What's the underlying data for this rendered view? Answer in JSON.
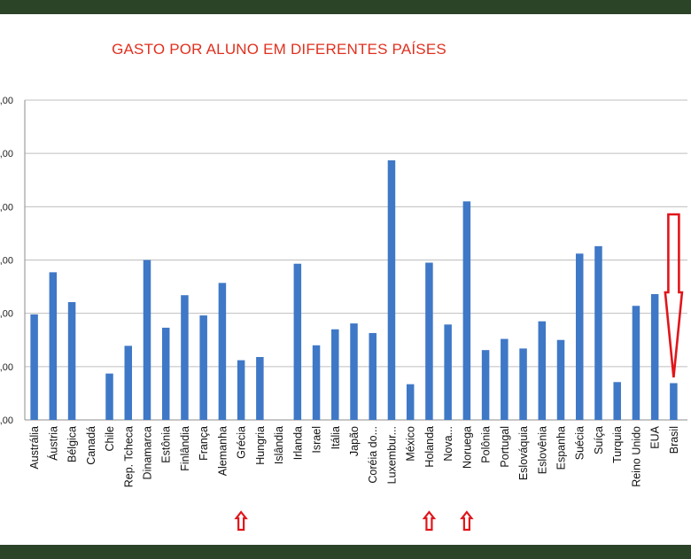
{
  "colors": {
    "frame": "#2b4326",
    "title": "#e0301e",
    "bar": "#3f78c6",
    "grid": "#bfbfbf",
    "arrow": "#e0161b"
  },
  "chart_data": {
    "type": "bar",
    "title": "GASTO POR ALUNO EM DIFERENTES PAÍSES",
    "xlabel": "",
    "ylabel": "",
    "ylim": [
      0,
      6
    ],
    "y_ticks": [
      ",00",
      ",00",
      ",00",
      ",00",
      ",00",
      ",00",
      ",00"
    ],
    "grid": true,
    "legend": "none",
    "categories": [
      "Austrália",
      "Áustria",
      "Bélgica",
      "Canadá",
      "Chile",
      "Rep. Tcheca",
      "Dinamarca",
      "Estônia",
      "Finlândia",
      "França",
      "Alemanha",
      "Grécia",
      "Hungria",
      "Islândia",
      "Irlanda",
      "Israel",
      "Itália",
      "Japão",
      "Coréia do...",
      "Luxembur...",
      "México",
      "Holanda",
      "Nova...",
      "Noruega",
      "Polônia",
      "Portugal",
      "Eslováquia",
      "Eslovênia",
      "Espanha",
      "Suécia",
      "Suíça",
      "Turquia",
      "Reino Unido",
      "EUA",
      "Brasil"
    ],
    "values": [
      1.98,
      2.77,
      2.21,
      null,
      0.87,
      1.39,
      3.0,
      1.73,
      2.34,
      1.96,
      2.57,
      1.12,
      1.18,
      null,
      2.93,
      1.4,
      1.7,
      1.81,
      1.63,
      4.87,
      0.67,
      2.95,
      1.79,
      4.1,
      1.31,
      1.52,
      1.34,
      1.85,
      1.5,
      3.12,
      3.26,
      0.71,
      2.14,
      2.36,
      0.69
    ],
    "annotations": [
      {
        "category": "Grécia",
        "marker": "up-arrow"
      },
      {
        "category": "Holanda",
        "marker": "up-arrow"
      },
      {
        "category": "Noruega",
        "marker": "up-arrow"
      },
      {
        "category": "Brasil",
        "marker": "down-arrow"
      }
    ]
  }
}
